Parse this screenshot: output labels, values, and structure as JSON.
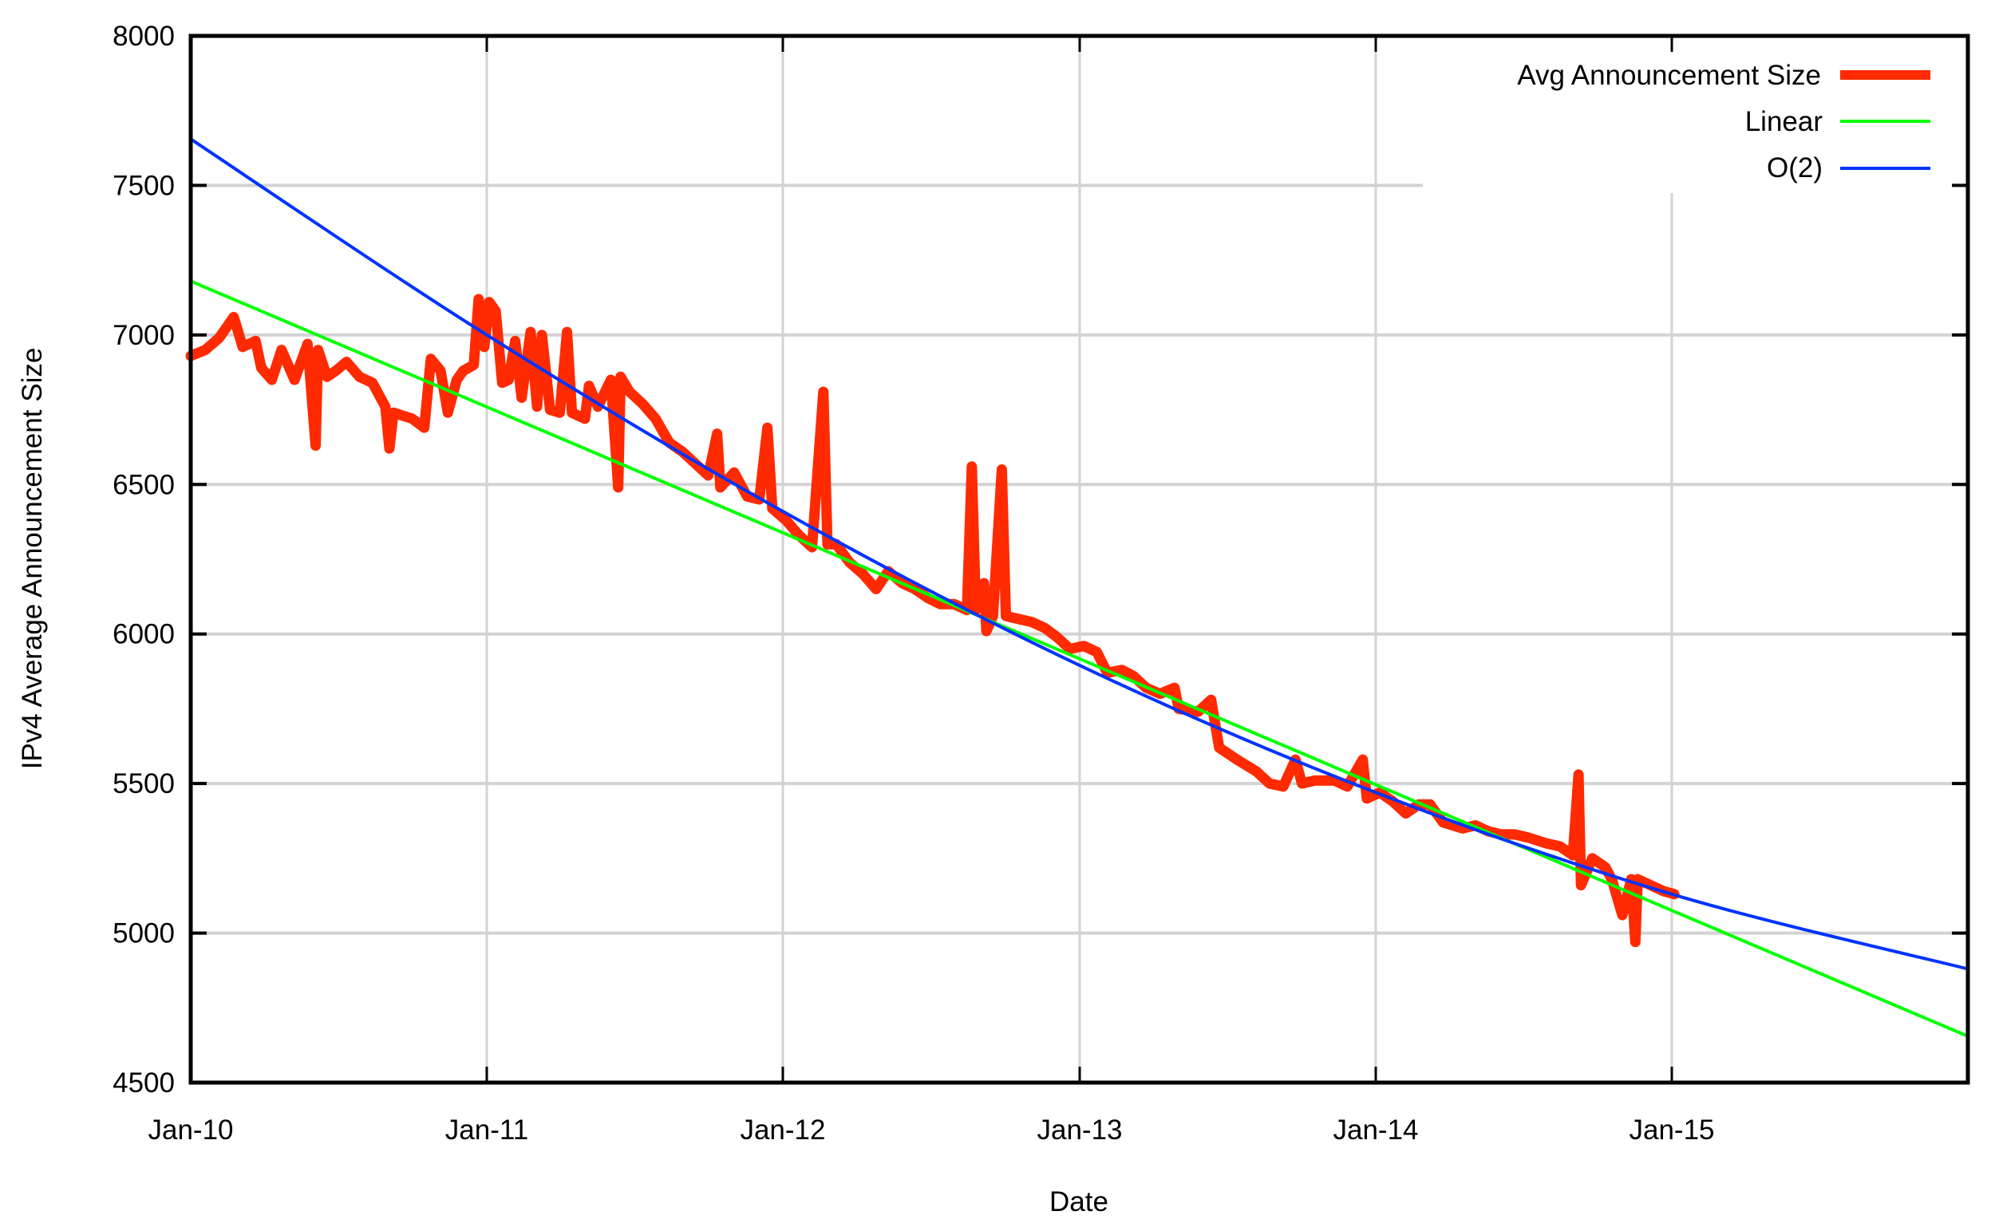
{
  "chart_data": {
    "type": "line",
    "title": "",
    "xlabel": "Date",
    "ylabel": "IPv4 Average Announcement Size",
    "xlim": [
      "2010-01-01",
      "2016-01-01"
    ],
    "ylim": [
      4500,
      8000
    ],
    "grid": true,
    "legend_position": "top-right",
    "x_ticks": [
      {
        "date": "2010-01-01",
        "label": "Jan-10"
      },
      {
        "date": "2011-01-01",
        "label": "Jan-11"
      },
      {
        "date": "2012-01-01",
        "label": "Jan-12"
      },
      {
        "date": "2013-01-01",
        "label": "Jan-13"
      },
      {
        "date": "2014-01-01",
        "label": "Jan-14"
      },
      {
        "date": "2015-01-01",
        "label": "Jan-15"
      }
    ],
    "y_ticks": [
      4500,
      5000,
      5500,
      6000,
      6500,
      7000,
      7500,
      8000
    ],
    "series": [
      {
        "name": "Avg Announcement Size",
        "color": "#ff2a00",
        "points": [
          [
            "2010-01-01",
            6930
          ],
          [
            "2010-01-19",
            6950
          ],
          [
            "2010-02-05",
            6990
          ],
          [
            "2010-02-23",
            7060
          ],
          [
            "2010-03-06",
            6960
          ],
          [
            "2010-03-22",
            6980
          ],
          [
            "2010-03-29",
            6890
          ],
          [
            "2010-04-11",
            6850
          ],
          [
            "2010-04-23",
            6950
          ],
          [
            "2010-05-09",
            6850
          ],
          [
            "2010-05-25",
            6970
          ],
          [
            "2010-06-04",
            6630
          ],
          [
            "2010-06-07",
            6950
          ],
          [
            "2010-06-18",
            6860
          ],
          [
            "2010-06-29",
            6880
          ],
          [
            "2010-07-12",
            6910
          ],
          [
            "2010-07-28",
            6860
          ],
          [
            "2010-08-13",
            6840
          ],
          [
            "2010-08-29",
            6760
          ],
          [
            "2010-09-03",
            6620
          ],
          [
            "2010-09-08",
            6740
          ],
          [
            "2010-10-01",
            6720
          ],
          [
            "2010-10-16",
            6690
          ],
          [
            "2010-10-24",
            6920
          ],
          [
            "2010-11-05",
            6880
          ],
          [
            "2010-11-14",
            6740
          ],
          [
            "2010-11-25",
            6850
          ],
          [
            "2010-12-03",
            6880
          ],
          [
            "2010-12-16",
            6900
          ],
          [
            "2010-12-22",
            7120
          ],
          [
            "2010-12-29",
            6960
          ],
          [
            "2011-01-04",
            7110
          ],
          [
            "2011-01-12",
            7080
          ],
          [
            "2011-01-20",
            6840
          ],
          [
            "2011-01-28",
            6850
          ],
          [
            "2011-02-05",
            6980
          ],
          [
            "2011-02-13",
            6790
          ],
          [
            "2011-02-24",
            7010
          ],
          [
            "2011-03-04",
            6760
          ],
          [
            "2011-03-10",
            7000
          ],
          [
            "2011-03-20",
            6750
          ],
          [
            "2011-04-01",
            6740
          ],
          [
            "2011-04-10",
            7010
          ],
          [
            "2011-04-16",
            6740
          ],
          [
            "2011-05-02",
            6720
          ],
          [
            "2011-05-07",
            6830
          ],
          [
            "2011-05-18",
            6760
          ],
          [
            "2011-06-03",
            6850
          ],
          [
            "2011-06-12",
            6490
          ],
          [
            "2011-06-15",
            6860
          ],
          [
            "2011-06-26",
            6810
          ],
          [
            "2011-07-12",
            6770
          ],
          [
            "2011-07-28",
            6720
          ],
          [
            "2011-08-14",
            6640
          ],
          [
            "2011-08-30",
            6610
          ],
          [
            "2011-09-15",
            6570
          ],
          [
            "2011-10-01",
            6530
          ],
          [
            "2011-10-12",
            6670
          ],
          [
            "2011-10-16",
            6490
          ],
          [
            "2011-11-02",
            6540
          ],
          [
            "2011-11-18",
            6460
          ],
          [
            "2011-12-03",
            6450
          ],
          [
            "2011-12-13",
            6690
          ],
          [
            "2011-12-19",
            6420
          ],
          [
            "2012-01-05",
            6380
          ],
          [
            "2012-01-21",
            6330
          ],
          [
            "2012-02-06",
            6290
          ],
          [
            "2012-02-20",
            6810
          ],
          [
            "2012-02-25",
            6300
          ],
          [
            "2012-03-07",
            6300
          ],
          [
            "2012-03-23",
            6240
          ],
          [
            "2012-04-09",
            6200
          ],
          [
            "2012-04-25",
            6150
          ],
          [
            "2012-05-10",
            6210
          ],
          [
            "2012-05-27",
            6170
          ],
          [
            "2012-06-12",
            6150
          ],
          [
            "2012-06-28",
            6120
          ],
          [
            "2012-07-13",
            6100
          ],
          [
            "2012-07-30",
            6100
          ],
          [
            "2012-08-15",
            6080
          ],
          [
            "2012-08-21",
            6560
          ],
          [
            "2012-08-26",
            6080
          ],
          [
            "2012-09-05",
            6170
          ],
          [
            "2012-09-08",
            6010
          ],
          [
            "2012-09-16",
            6060
          ],
          [
            "2012-09-27",
            6550
          ],
          [
            "2012-10-02",
            6060
          ],
          [
            "2012-10-18",
            6050
          ],
          [
            "2012-11-03",
            6040
          ],
          [
            "2012-11-19",
            6020
          ],
          [
            "2012-12-04",
            5990
          ],
          [
            "2012-12-20",
            5950
          ],
          [
            "2013-01-06",
            5960
          ],
          [
            "2013-01-22",
            5940
          ],
          [
            "2013-02-04",
            5870
          ],
          [
            "2013-02-22",
            5880
          ],
          [
            "2013-03-08",
            5860
          ],
          [
            "2013-03-24",
            5820
          ],
          [
            "2013-04-10",
            5800
          ],
          [
            "2013-04-28",
            5820
          ],
          [
            "2013-05-03",
            5750
          ],
          [
            "2013-05-27",
            5740
          ],
          [
            "2013-06-12",
            5780
          ],
          [
            "2013-06-22",
            5620
          ],
          [
            "2013-07-14",
            5580
          ],
          [
            "2013-08-07",
            5540
          ],
          [
            "2013-08-23",
            5500
          ],
          [
            "2013-09-09",
            5490
          ],
          [
            "2013-09-24",
            5580
          ],
          [
            "2013-10-02",
            5500
          ],
          [
            "2013-10-18",
            5510
          ],
          [
            "2013-11-11",
            5510
          ],
          [
            "2013-11-27",
            5490
          ],
          [
            "2013-12-16",
            5580
          ],
          [
            "2013-12-21",
            5450
          ],
          [
            "2014-01-06",
            5470
          ],
          [
            "2014-01-22",
            5440
          ],
          [
            "2014-02-07",
            5400
          ],
          [
            "2014-02-23",
            5430
          ],
          [
            "2014-03-09",
            5430
          ],
          [
            "2014-03-25",
            5370
          ],
          [
            "2014-04-18",
            5350
          ],
          [
            "2014-05-04",
            5360
          ],
          [
            "2014-05-20",
            5340
          ],
          [
            "2014-06-05",
            5330
          ],
          [
            "2014-06-21",
            5330
          ],
          [
            "2014-07-07",
            5320
          ],
          [
            "2014-07-30",
            5300
          ],
          [
            "2014-08-16",
            5290
          ],
          [
            "2014-09-01",
            5260
          ],
          [
            "2014-09-08",
            5530
          ],
          [
            "2014-09-11",
            5160
          ],
          [
            "2014-09-25",
            5250
          ],
          [
            "2014-10-11",
            5220
          ],
          [
            "2014-10-19",
            5180
          ],
          [
            "2014-11-01",
            5060
          ],
          [
            "2014-11-12",
            5180
          ],
          [
            "2014-11-17",
            4970
          ],
          [
            "2014-11-20",
            5180
          ],
          [
            "2014-12-06",
            5160
          ],
          [
            "2014-12-22",
            5140
          ],
          [
            "2015-01-04",
            5130
          ]
        ]
      },
      {
        "name": "Linear",
        "color": "#00ff00",
        "points": [
          [
            "2010-01-01",
            7180
          ],
          [
            "2016-01-01",
            4655
          ]
        ]
      },
      {
        "name": "O(2)",
        "color": "#0033ff",
        "points": [
          [
            "2010-01-01",
            7655
          ],
          [
            "2011-01-01",
            7000
          ],
          [
            "2012-01-01",
            6410
          ],
          [
            "2013-01-01",
            5895
          ],
          [
            "2014-01-01",
            5470
          ],
          [
            "2015-01-01",
            5130
          ],
          [
            "2016-01-01",
            4880
          ]
        ]
      }
    ]
  }
}
